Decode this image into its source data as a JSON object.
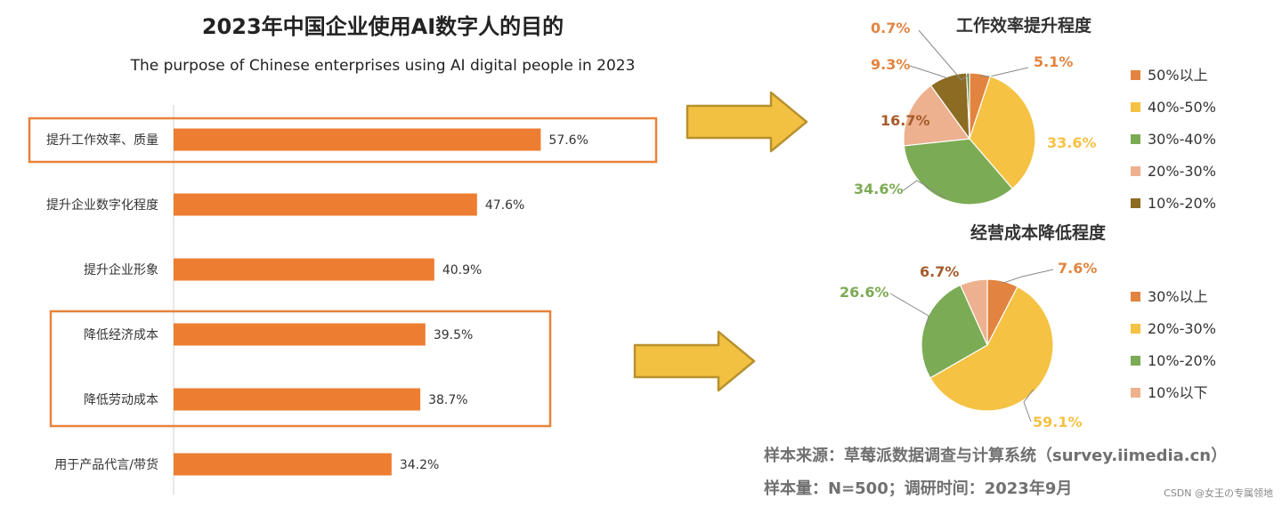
{
  "title": "2023年中国企业使用AI数字人的目的",
  "subtitle": "The purpose of Chinese enterprises using AI digital people in 2023",
  "colors": {
    "bar": "#ED7D31",
    "highlight_box": "#E8823A",
    "arrow_fill": "#F2C142",
    "arrow_stroke": "#B8912E",
    "axis": "#D0D0D0",
    "title_text": "#222222",
    "label_text": "#333333",
    "note_text": "#707070",
    "watermark_text": "#888888"
  },
  "icons": {
    "arrow_top": "right-arrow-icon",
    "arrow_bottom": "right-arrow-icon"
  },
  "source_note": "样本来源：草莓派数据调查与计算系统（survey.iimedia.cn）",
  "sample_note": "样本量：N=500；调研时间：2023年9月",
  "watermark": "CSDN @女王の专属领地",
  "chart_data": [
    {
      "type": "bar",
      "orientation": "horizontal",
      "categories": [
        "提升工作效率、质量",
        "提升企业数字化程度",
        "提升企业形象",
        "降低经济成本",
        "降低劳动成本",
        "用于产品代言/带货"
      ],
      "values": [
        57.6,
        47.6,
        40.9,
        39.5,
        38.7,
        34.2
      ],
      "value_labels": [
        "57.6%",
        "47.6%",
        "40.9%",
        "39.5%",
        "38.7%",
        "34.2%"
      ],
      "xlim": [
        0,
        70
      ],
      "grid": false,
      "highlighted_categories": [
        [
          "提升工作效率、质量"
        ],
        [
          "降低经济成本",
          "降低劳动成本"
        ]
      ]
    },
    {
      "type": "pie",
      "title": "工作效率提升程度",
      "labels": [
        "50%以上",
        "40%-50%",
        "30%-40%",
        "20%-30%",
        "10%-20%",
        ""
      ],
      "values": [
        5.1,
        33.6,
        34.6,
        16.7,
        9.3,
        0.7
      ],
      "value_labels": [
        "5.1%",
        "33.6%",
        "34.6%",
        "16.7%",
        "9.3%",
        "0.7%"
      ],
      "colors": [
        "#E2843F",
        "#F5C243",
        "#7CAB55",
        "#EDB18F",
        "#8C6B23",
        "#54843A"
      ],
      "label_colors": [
        "#E2843F",
        "#F5C243",
        "#7CAB55",
        "#A55B2B",
        "#E2843F",
        "#E2843F"
      ],
      "legend": "right",
      "legend_labels": [
        "50%以上",
        "40%-50%",
        "30%-40%",
        "20%-30%",
        "10%-20%"
      ]
    },
    {
      "type": "pie",
      "title": "经营成本降低程度",
      "labels": [
        "30%以上",
        "20%-30%",
        "10%-20%",
        "10%以下"
      ],
      "values": [
        7.6,
        59.1,
        26.6,
        6.7
      ],
      "value_labels": [
        "7.6%",
        "59.1%",
        "26.6%",
        "6.7%"
      ],
      "colors": [
        "#E2843F",
        "#F5C243",
        "#7CAB55",
        "#EDB18F"
      ],
      "label_colors": [
        "#E2843F",
        "#F5C243",
        "#7CAB55",
        "#A55B2B"
      ],
      "legend": "right",
      "legend_labels": [
        "30%以上",
        "20%-30%",
        "10%-20%",
        "10%以下"
      ]
    }
  ]
}
